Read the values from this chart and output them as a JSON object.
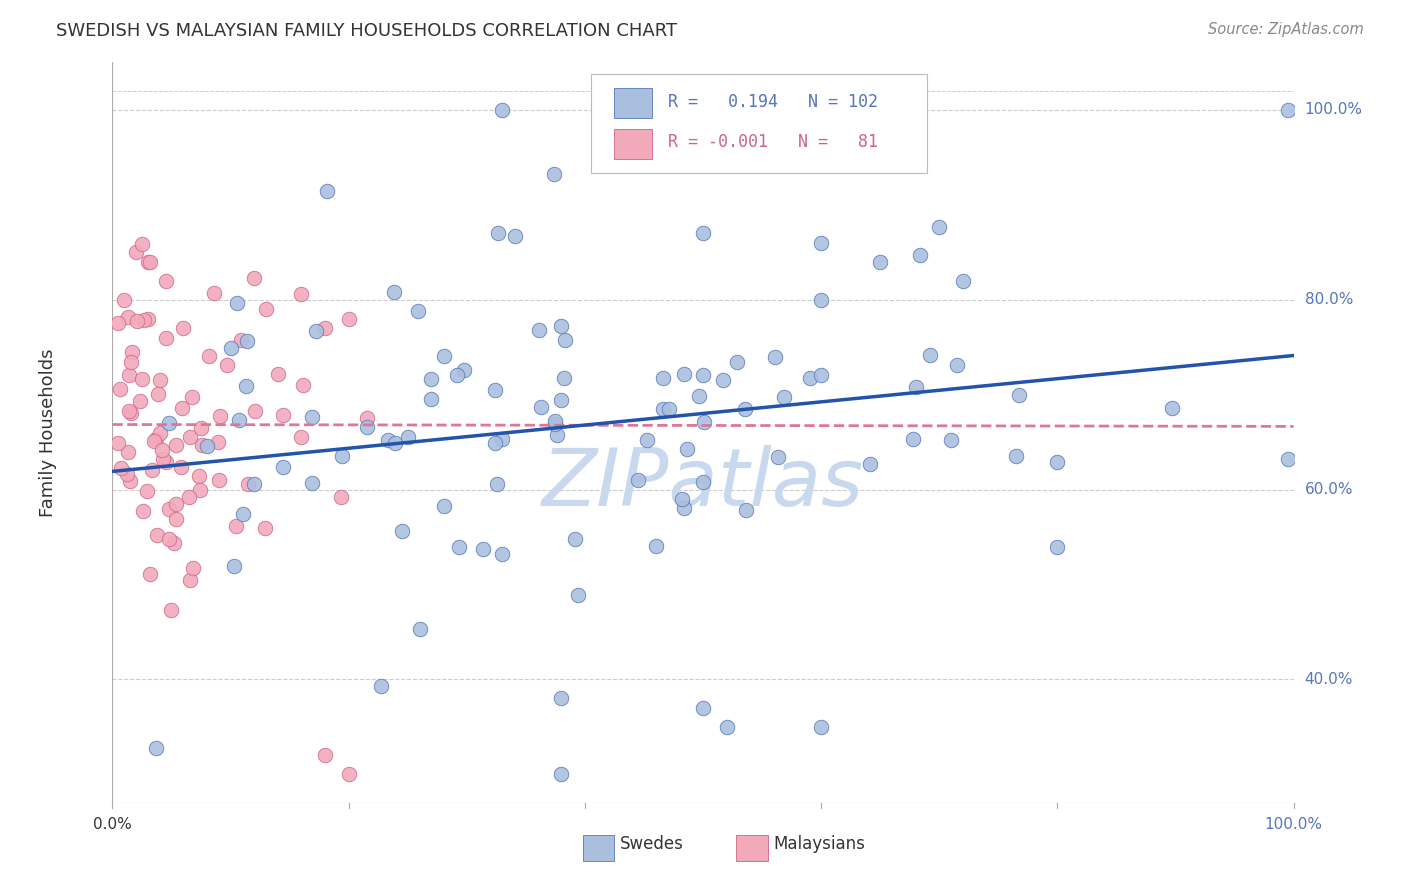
{
  "title": "SWEDISH VS MALAYSIAN FAMILY HOUSEHOLDS CORRELATION CHART",
  "source": "Source: ZipAtlas.com",
  "ylabel": "Family Households",
  "xlim": [
    0.0,
    1.0
  ],
  "ylim": [
    0.27,
    1.05
  ],
  "ytick_labels": [
    "40.0%",
    "60.0%",
    "80.0%",
    "100.0%"
  ],
  "ytick_values": [
    0.4,
    0.6,
    0.8,
    1.0
  ],
  "legend_r_blue": "0.194",
  "legend_n_blue": "102",
  "legend_r_pink": "-0.001",
  "legend_n_pink": "81",
  "blue_fill": "#AABFDE",
  "blue_edge": "#5577BB",
  "pink_fill": "#F2AABB",
  "pink_edge": "#CC6688",
  "line_blue": "#2255AA",
  "line_pink": "#DD7799",
  "background_color": "#ffffff",
  "grid_color": "#cccccc",
  "watermark_color": "#C8D8EE",
  "title_color": "#333333",
  "source_color": "#888888",
  "label_color": "#5577BB",
  "axis_color": "#aaaaaa"
}
